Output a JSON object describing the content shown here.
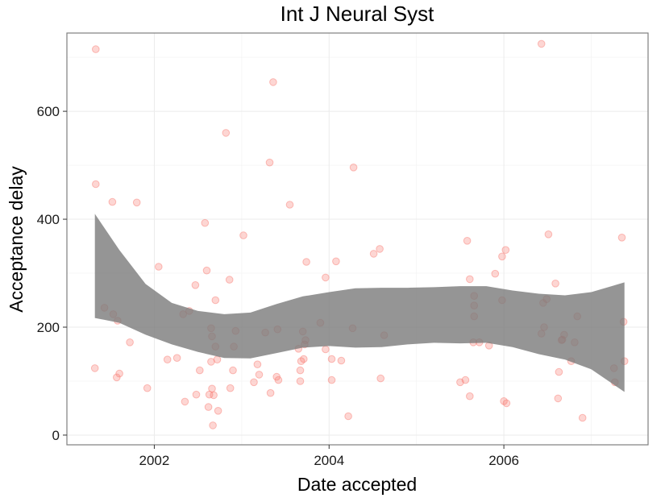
{
  "chart_data": {
    "type": "scatter",
    "title": "Int J Neural Syst",
    "xlabel": "Date accepted",
    "ylabel": "Acceptance delay",
    "xlim": [
      2001.0,
      2007.65
    ],
    "ylim": [
      -18,
      745
    ],
    "x_ticks": [
      2002,
      2004,
      2006
    ],
    "x_tick_labels": [
      "2002",
      "2004",
      "2006"
    ],
    "y_ticks": [
      0,
      200,
      400,
      600
    ],
    "y_tick_labels": [
      "0",
      "200",
      "400",
      "600"
    ],
    "grid": true,
    "legend": "none",
    "point_color": "#f8766d",
    "band_color": "#7a7a7a",
    "points": [
      [
        2001.33,
        715
      ],
      [
        2001.33,
        465
      ],
      [
        2001.32,
        124
      ],
      [
        2001.43,
        236
      ],
      [
        2001.52,
        432
      ],
      [
        2001.53,
        224
      ],
      [
        2001.58,
        212
      ],
      [
        2001.57,
        107
      ],
      [
        2001.6,
        114
      ],
      [
        2001.72,
        172
      ],
      [
        2001.8,
        431
      ],
      [
        2001.92,
        87
      ],
      [
        2002.05,
        312
      ],
      [
        2002.15,
        140
      ],
      [
        2002.26,
        143
      ],
      [
        2002.33,
        224
      ],
      [
        2002.35,
        62
      ],
      [
        2002.4,
        230
      ],
      [
        2002.47,
        278
      ],
      [
        2002.48,
        75
      ],
      [
        2002.52,
        120
      ],
      [
        2002.58,
        393
      ],
      [
        2002.6,
        305
      ],
      [
        2002.63,
        75
      ],
      [
        2002.62,
        52
      ],
      [
        2002.65,
        198
      ],
      [
        2002.66,
        86
      ],
      [
        2002.68,
        74
      ],
      [
        2002.65,
        136
      ],
      [
        2002.66,
        183
      ],
      [
        2002.67,
        18
      ],
      [
        2002.7,
        250
      ],
      [
        2002.7,
        164
      ],
      [
        2002.72,
        140
      ],
      [
        2002.73,
        45
      ],
      [
        2002.82,
        560
      ],
      [
        2002.86,
        288
      ],
      [
        2002.87,
        87
      ],
      [
        2002.9,
        120
      ],
      [
        2002.91,
        164
      ],
      [
        2002.93,
        193
      ],
      [
        2003.02,
        370
      ],
      [
        2003.14,
        98
      ],
      [
        2003.18,
        131
      ],
      [
        2003.2,
        112
      ],
      [
        2003.27,
        190
      ],
      [
        2003.32,
        505
      ],
      [
        2003.33,
        78
      ],
      [
        2003.36,
        654
      ],
      [
        2003.4,
        108
      ],
      [
        2003.41,
        196
      ],
      [
        2003.42,
        102
      ],
      [
        2003.55,
        427
      ],
      [
        2003.65,
        160
      ],
      [
        2003.67,
        120
      ],
      [
        2003.67,
        100
      ],
      [
        2003.68,
        137
      ],
      [
        2003.7,
        192
      ],
      [
        2003.71,
        141
      ],
      [
        2003.72,
        168
      ],
      [
        2003.73,
        176
      ],
      [
        2003.74,
        321
      ],
      [
        2003.9,
        208
      ],
      [
        2003.96,
        292
      ],
      [
        2003.96,
        159
      ],
      [
        2004.03,
        141
      ],
      [
        2004.03,
        102
      ],
      [
        2004.08,
        322
      ],
      [
        2004.14,
        138
      ],
      [
        2004.22,
        35
      ],
      [
        2004.27,
        198
      ],
      [
        2004.28,
        496
      ],
      [
        2004.51,
        336
      ],
      [
        2004.58,
        345
      ],
      [
        2004.59,
        105
      ],
      [
        2004.63,
        185
      ],
      [
        2005.5,
        98
      ],
      [
        2005.56,
        102
      ],
      [
        2005.58,
        360
      ],
      [
        2005.61,
        289
      ],
      [
        2005.61,
        72
      ],
      [
        2005.66,
        258
      ],
      [
        2005.66,
        240
      ],
      [
        2005.66,
        220
      ],
      [
        2005.65,
        172
      ],
      [
        2005.72,
        172
      ],
      [
        2005.83,
        166
      ],
      [
        2005.9,
        299
      ],
      [
        2005.98,
        250
      ],
      [
        2005.98,
        331
      ],
      [
        2006.0,
        63
      ],
      [
        2006.02,
        343
      ],
      [
        2006.03,
        59
      ],
      [
        2006.43,
        725
      ],
      [
        2006.43,
        188
      ],
      [
        2006.45,
        245
      ],
      [
        2006.46,
        200
      ],
      [
        2006.49,
        252
      ],
      [
        2006.51,
        372
      ],
      [
        2006.59,
        281
      ],
      [
        2006.62,
        68
      ],
      [
        2006.63,
        117
      ],
      [
        2006.66,
        176
      ],
      [
        2006.67,
        177
      ],
      [
        2006.69,
        186
      ],
      [
        2006.77,
        137
      ],
      [
        2006.81,
        172
      ],
      [
        2006.84,
        220
      ],
      [
        2006.9,
        32
      ],
      [
        2007.26,
        124
      ],
      [
        2007.27,
        98
      ],
      [
        2007.35,
        366
      ],
      [
        2007.37,
        210
      ],
      [
        2007.38,
        137
      ]
    ],
    "smooth_band": {
      "x": [
        2001.32,
        2001.6,
        2001.9,
        2002.2,
        2002.5,
        2002.8,
        2003.1,
        2003.4,
        2003.7,
        2004.0,
        2004.3,
        2004.6,
        2004.9,
        2005.2,
        2005.5,
        2005.8,
        2006.1,
        2006.4,
        2006.7,
        2007.0,
        2007.38
      ],
      "lower": [
        217,
        208,
        186,
        168,
        154,
        143,
        142,
        152,
        162,
        165,
        162,
        163,
        168,
        171,
        170,
        171,
        163,
        150,
        140,
        122,
        80
      ],
      "upper": [
        410,
        343,
        280,
        245,
        230,
        224,
        227,
        243,
        257,
        265,
        272,
        273,
        273,
        274,
        276,
        276,
        268,
        262,
        259,
        265,
        283
      ]
    }
  }
}
